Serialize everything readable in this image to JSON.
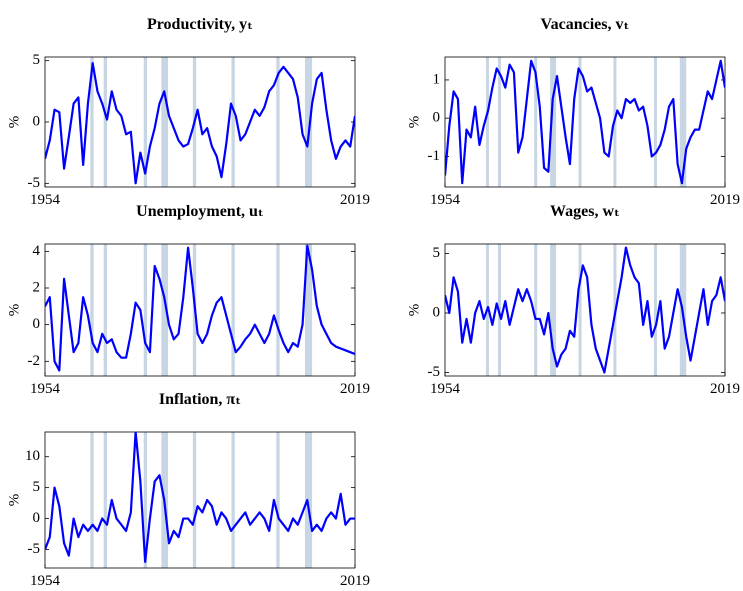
{
  "chart_data": [
    {
      "type": "line",
      "title": "Productivity, yₜ",
      "ylabel": "%",
      "color": "#0000ff",
      "shade_color": "#c8d6e3",
      "x": [
        1954,
        1955,
        1956,
        1957,
        1958,
        1959,
        1960,
        1961,
        1962,
        1963,
        1964,
        1965,
        1966,
        1967,
        1968,
        1969,
        1970,
        1971,
        1972,
        1973,
        1974,
        1975,
        1976,
        1977,
        1978,
        1979,
        1980,
        1981,
        1982,
        1983,
        1984,
        1985,
        1986,
        1987,
        1988,
        1989,
        1990,
        1991,
        1992,
        1993,
        1994,
        1995,
        1996,
        1997,
        1998,
        1999,
        2000,
        2001,
        2002,
        2003,
        2004,
        2005,
        2006,
        2007,
        2008,
        2009,
        2010,
        2011,
        2012,
        2013,
        2014,
        2015,
        2016,
        2017,
        2018,
        2019
      ],
      "values": [
        -3,
        -1.5,
        1,
        0.8,
        -3.8,
        -1.2,
        1.5,
        2,
        -3.5,
        1.5,
        4.8,
        2.5,
        1.5,
        0.2,
        2.5,
        1,
        0.5,
        -1,
        -0.8,
        -5,
        -2.5,
        -4.2,
        -2,
        -0.5,
        1.5,
        2.5,
        0.5,
        -0.5,
        -1.5,
        -2,
        -1.8,
        -0.5,
        1,
        -1,
        -0.5,
        -2,
        -2.8,
        -4.5,
        -1.8,
        1.5,
        0.5,
        -1.5,
        -1,
        0,
        1,
        0.5,
        1.2,
        2.5,
        3,
        4,
        4.5,
        4,
        3.5,
        2,
        -1,
        -2,
        1.5,
        3.5,
        4,
        1,
        -1.5,
        -3,
        -2,
        -1.5,
        -2,
        0.5
      ],
      "xlim": [
        1954,
        2019
      ],
      "xticks": [
        1954,
        2019
      ],
      "ylim": [
        -5.3,
        5.3
      ],
      "yticks": [
        -5,
        0,
        5
      ],
      "shaded_periods": [
        [
          1963.5,
          1964.2
        ],
        [
          1966.3,
          1967
        ],
        [
          1974.7,
          1975.4
        ],
        [
          1978.4,
          1979.8
        ],
        [
          1985,
          1985.7
        ],
        [
          1993.1,
          1993.8
        ],
        [
          2002.5,
          2003.2
        ],
        [
          2008.5,
          2010
        ]
      ]
    },
    {
      "type": "line",
      "title": "Vacancies, vₜ",
      "ylabel": "%",
      "color": "#0000ff",
      "shade_color": "#c8d6e3",
      "x": [
        1954,
        1955,
        1956,
        1957,
        1958,
        1959,
        1960,
        1961,
        1962,
        1963,
        1964,
        1965,
        1966,
        1967,
        1968,
        1969,
        1970,
        1971,
        1972,
        1973,
        1974,
        1975,
        1976,
        1977,
        1978,
        1979,
        1980,
        1981,
        1982,
        1983,
        1984,
        1985,
        1986,
        1987,
        1988,
        1989,
        1990,
        1991,
        1992,
        1993,
        1994,
        1995,
        1996,
        1997,
        1998,
        1999,
        2000,
        2001,
        2002,
        2003,
        2004,
        2005,
        2006,
        2007,
        2008,
        2009,
        2010,
        2011,
        2012,
        2013,
        2014,
        2015,
        2016,
        2017,
        2018,
        2019
      ],
      "values": [
        -1.5,
        -0.2,
        0.7,
        0.5,
        -1.7,
        -0.3,
        -0.5,
        0.3,
        -0.7,
        -0.2,
        0.2,
        0.8,
        1.3,
        1.1,
        0.8,
        1.4,
        1.2,
        -0.9,
        -0.5,
        0.5,
        1.5,
        1.2,
        0.3,
        -1.3,
        -1.4,
        0.5,
        1.1,
        0.3,
        -0.5,
        -1.2,
        0.5,
        1.3,
        1.1,
        0.7,
        0.8,
        0.4,
        0,
        -0.9,
        -1,
        -0.2,
        0.2,
        0,
        0.5,
        0.4,
        0.5,
        0.2,
        0.3,
        -0.2,
        -1,
        -0.9,
        -0.7,
        -0.3,
        0.3,
        0.5,
        -1.2,
        -1.7,
        -0.8,
        -0.5,
        -0.3,
        -0.3,
        0.2,
        0.7,
        0.5,
        1,
        1.5,
        0.8
      ],
      "xlim": [
        1954,
        2019
      ],
      "xticks": [
        1954,
        2019
      ],
      "ylim": [
        -1.8,
        1.6
      ],
      "yticks": [
        -1,
        0,
        1
      ],
      "shaded_periods": [
        [
          1963.5,
          1964.2
        ],
        [
          1966.3,
          1967
        ],
        [
          1974.7,
          1975.4
        ],
        [
          1978.4,
          1979.8
        ],
        [
          1985,
          1985.7
        ],
        [
          1993.1,
          1993.8
        ],
        [
          2002.5,
          2003.2
        ],
        [
          2008.5,
          2010
        ]
      ]
    },
    {
      "type": "line",
      "title": "Unemployment, uₜ",
      "ylabel": "%",
      "color": "#0000ff",
      "shade_color": "#c8d6e3",
      "x": [
        1954,
        1955,
        1956,
        1957,
        1958,
        1959,
        1960,
        1961,
        1962,
        1963,
        1964,
        1965,
        1966,
        1967,
        1968,
        1969,
        1970,
        1971,
        1972,
        1973,
        1974,
        1975,
        1976,
        1977,
        1978,
        1979,
        1980,
        1981,
        1982,
        1983,
        1984,
        1985,
        1986,
        1987,
        1988,
        1989,
        1990,
        1991,
        1992,
        1993,
        1994,
        1995,
        1996,
        1997,
        1998,
        1999,
        2000,
        2001,
        2002,
        2003,
        2004,
        2005,
        2006,
        2007,
        2008,
        2009,
        2010,
        2011,
        2012,
        2013,
        2014,
        2015,
        2016,
        2017,
        2018,
        2019
      ],
      "values": [
        1,
        1.5,
        -2,
        -2.5,
        2.5,
        0.5,
        -1.5,
        -1,
        1.5,
        0.5,
        -1,
        -1.5,
        -0.5,
        -1,
        -0.8,
        -1.5,
        -1.8,
        -1.8,
        -0.5,
        1.2,
        0.8,
        -1,
        -1.5,
        3.2,
        2.5,
        1.5,
        0,
        -0.8,
        -0.5,
        1.5,
        4.2,
        2,
        -0.5,
        -1,
        -0.5,
        0.5,
        1.2,
        1.5,
        0.5,
        -0.5,
        -1.5,
        -1.2,
        -0.8,
        -0.5,
        0,
        -0.5,
        -1,
        -0.5,
        0.5,
        -0.3,
        -1,
        -1.5,
        -1,
        -1.2,
        0,
        4.3,
        3,
        1,
        0,
        -0.5,
        -1,
        -1.2,
        -1.3,
        -1.4,
        -1.5,
        -1.6
      ],
      "xlim": [
        1954,
        2019
      ],
      "xticks": [
        1954,
        2019
      ],
      "ylim": [
        -2.8,
        4.4
      ],
      "yticks": [
        -2,
        0,
        2,
        4
      ],
      "shaded_periods": [
        [
          1963.5,
          1964.2
        ],
        [
          1966.3,
          1967
        ],
        [
          1974.7,
          1975.4
        ],
        [
          1978.4,
          1979.8
        ],
        [
          1985,
          1985.7
        ],
        [
          1993.1,
          1993.8
        ],
        [
          2002.5,
          2003.2
        ],
        [
          2008.5,
          2010
        ]
      ]
    },
    {
      "type": "line",
      "title": "Wages, wₜ",
      "ylabel": "%",
      "color": "#0000ff",
      "shade_color": "#c8d6e3",
      "x": [
        1954,
        1955,
        1956,
        1957,
        1958,
        1959,
        1960,
        1961,
        1962,
        1963,
        1964,
        1965,
        1966,
        1967,
        1968,
        1969,
        1970,
        1971,
        1972,
        1973,
        1974,
        1975,
        1976,
        1977,
        1978,
        1979,
        1980,
        1981,
        1982,
        1983,
        1984,
        1985,
        1986,
        1987,
        1988,
        1989,
        1990,
        1991,
        1992,
        1993,
        1994,
        1995,
        1996,
        1997,
        1998,
        1999,
        2000,
        2001,
        2002,
        2003,
        2004,
        2005,
        2006,
        2007,
        2008,
        2009,
        2010,
        2011,
        2012,
        2013,
        2014,
        2015,
        2016,
        2017,
        2018,
        2019
      ],
      "values": [
        1.5,
        0,
        3,
        1.8,
        -2.5,
        -0.5,
        -2.5,
        0,
        1,
        -0.5,
        0.5,
        -1,
        0.8,
        -0.5,
        1,
        -1,
        0.5,
        2,
        1,
        2,
        1,
        -0.5,
        -0.5,
        -1.8,
        0,
        -3,
        -4.5,
        -3.5,
        -3,
        -1.5,
        -2,
        2,
        4,
        3,
        -1,
        -3,
        -4,
        -5,
        -3,
        -1,
        1,
        3,
        5.5,
        4,
        3,
        2.5,
        -1,
        1,
        -2,
        -1,
        1,
        -3,
        -2,
        0,
        2,
        0.5,
        -2,
        -4,
        -2,
        0,
        2,
        -1,
        1,
        1.5,
        3,
        1
      ],
      "xlim": [
        1954,
        2019
      ],
      "xticks": [
        1954,
        2019
      ],
      "ylim": [
        -5.3,
        5.8
      ],
      "yticks": [
        -5,
        0,
        5
      ],
      "shaded_periods": [
        [
          1963.5,
          1964.2
        ],
        [
          1966.3,
          1967
        ],
        [
          1974.7,
          1975.4
        ],
        [
          1978.4,
          1979.8
        ],
        [
          1985,
          1985.7
        ],
        [
          1993.1,
          1993.8
        ],
        [
          2002.5,
          2003.2
        ],
        [
          2008.5,
          2010
        ]
      ]
    },
    {
      "type": "line",
      "title": "Inflation, πₜ",
      "ylabel": "%",
      "color": "#0000ff",
      "shade_color": "#c8d6e3",
      "x": [
        1954,
        1955,
        1956,
        1957,
        1958,
        1959,
        1960,
        1961,
        1962,
        1963,
        1964,
        1965,
        1966,
        1967,
        1968,
        1969,
        1970,
        1971,
        1972,
        1973,
        1974,
        1975,
        1976,
        1977,
        1978,
        1979,
        1980,
        1981,
        1982,
        1983,
        1984,
        1985,
        1986,
        1987,
        1988,
        1989,
        1990,
        1991,
        1992,
        1993,
        1994,
        1995,
        1996,
        1997,
        1998,
        1999,
        2000,
        2001,
        2002,
        2003,
        2004,
        2005,
        2006,
        2007,
        2008,
        2009,
        2010,
        2011,
        2012,
        2013,
        2014,
        2015,
        2016,
        2017,
        2018,
        2019
      ],
      "values": [
        -5,
        -3,
        5,
        2,
        -4,
        -6,
        0,
        -3,
        -1,
        -2,
        -1,
        -2,
        0,
        -1,
        3,
        0,
        -1,
        -2,
        1,
        14,
        6,
        -7,
        0,
        6,
        7,
        3,
        -4,
        -2,
        -3,
        0,
        0,
        -1,
        2,
        1,
        3,
        2,
        -1,
        1,
        0,
        -2,
        -1,
        0,
        1,
        -1,
        0,
        1,
        0,
        -2,
        3,
        0,
        -1,
        -2,
        0,
        -1,
        1,
        3,
        -2,
        -1,
        -2,
        0,
        1,
        0,
        4,
        -1,
        0,
        0
      ],
      "xlim": [
        1954,
        2019
      ],
      "xticks": [
        1954,
        2019
      ],
      "ylim": [
        -8,
        14
      ],
      "yticks": [
        -5,
        0,
        5,
        10
      ],
      "shaded_periods": [
        [
          1963.5,
          1964.2
        ],
        [
          1966.3,
          1967
        ],
        [
          1974.7,
          1975.4
        ],
        [
          1978.4,
          1979.8
        ],
        [
          1985,
          1985.7
        ],
        [
          1993.1,
          1993.8
        ],
        [
          2002.5,
          2003.2
        ],
        [
          2008.5,
          2010
        ]
      ]
    }
  ]
}
